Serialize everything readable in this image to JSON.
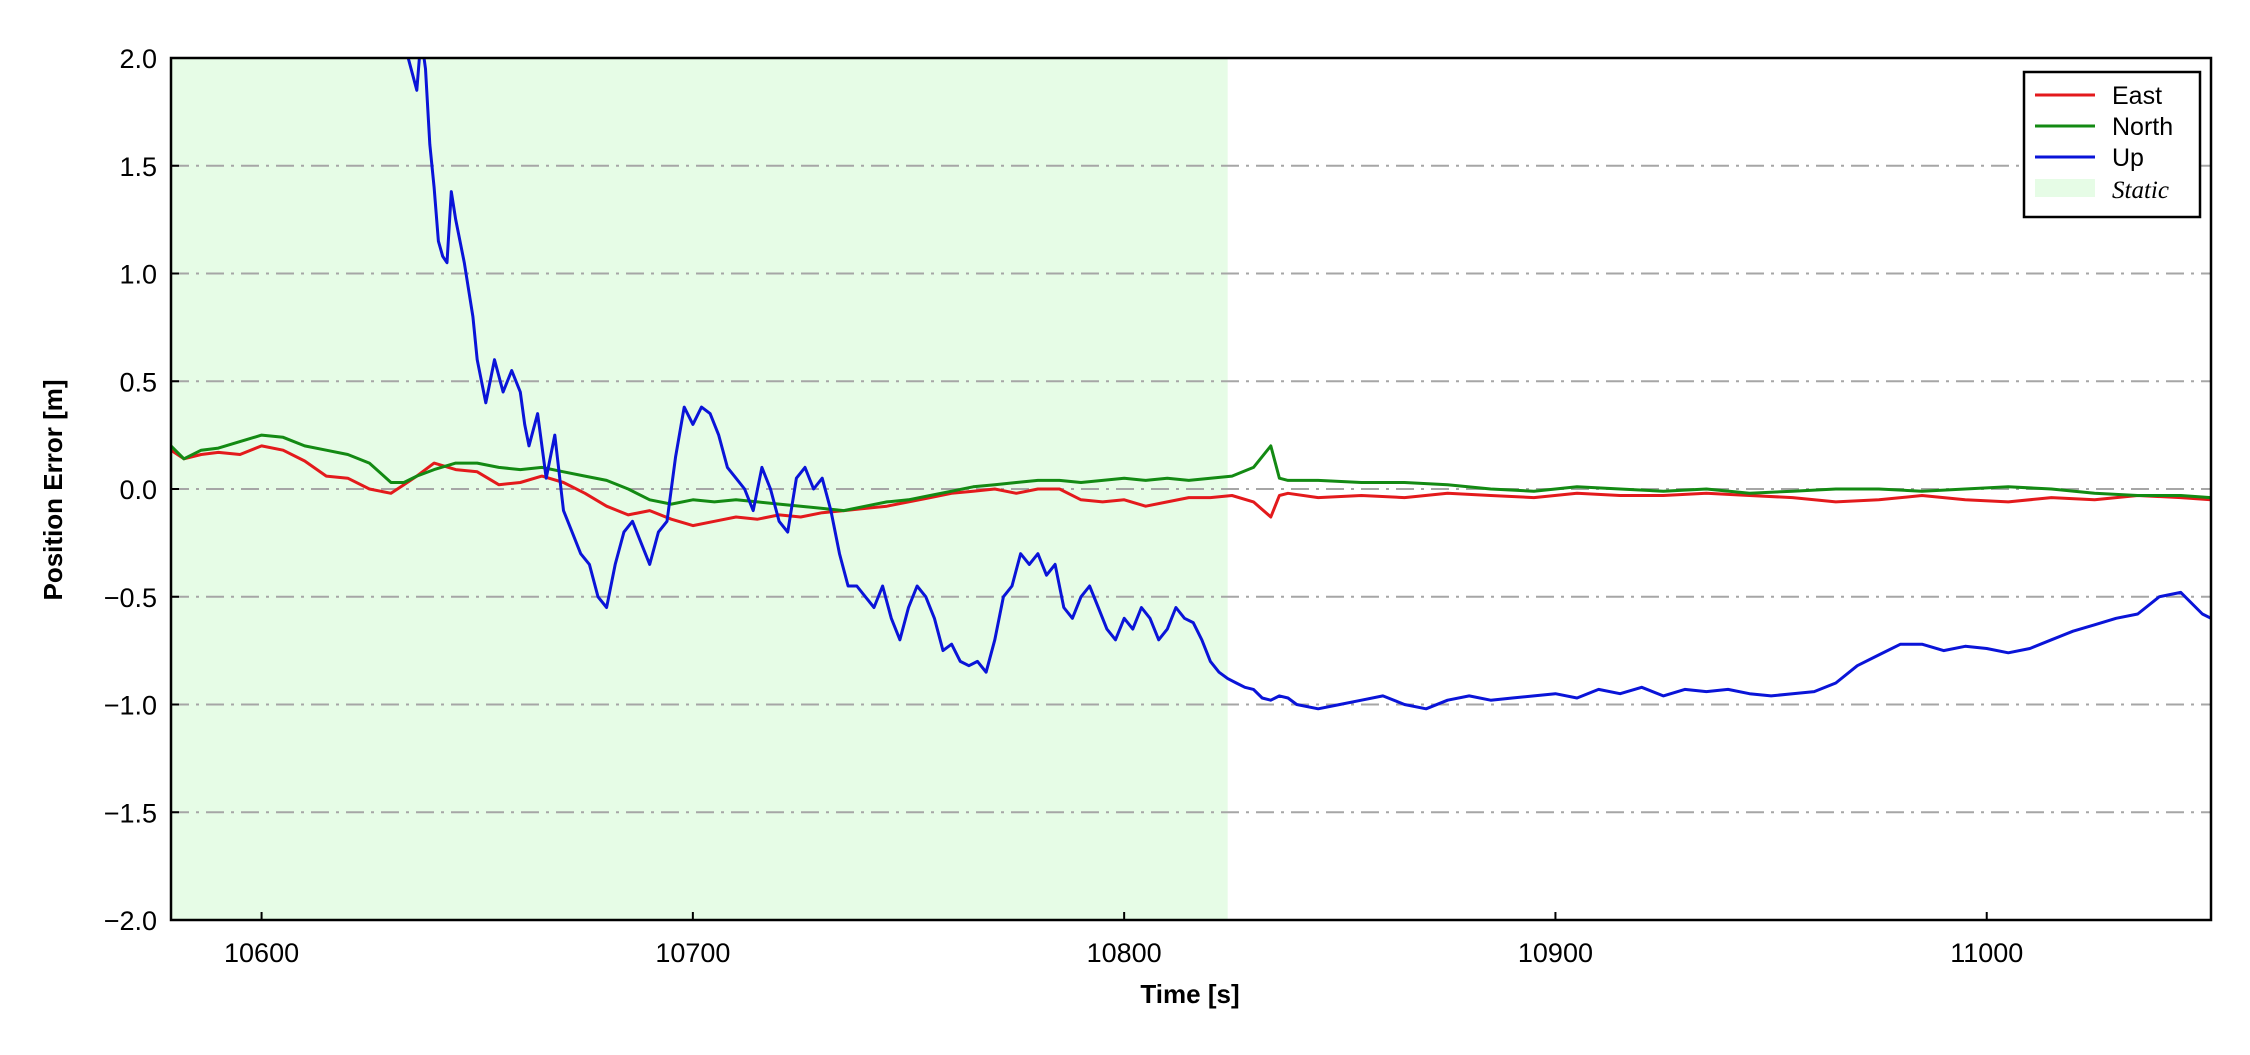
{
  "chart_data": {
    "type": "line",
    "xlabel": "Time [s]",
    "ylabel": "Position Error [m]",
    "xlim": [
      10579,
      11052
    ],
    "ylim": [
      -2.0,
      2.0
    ],
    "xticks": [
      10600,
      10700,
      10800,
      10900,
      11000
    ],
    "xtick_labels": [
      "10600",
      "10700",
      "10800",
      "10900",
      "11000"
    ],
    "yticks": [
      2.0,
      1.5,
      1.0,
      0.5,
      0.0,
      -0.5,
      -1.0,
      -1.5,
      -2.0
    ],
    "ytick_labels": [
      "2.0",
      "1.5",
      "1.0",
      "0.5",
      "0.0",
      "−0.5",
      "−1.0",
      "−1.5",
      "−2.0"
    ],
    "grid": "horizontal dash-dot",
    "legend_position": "top-right",
    "shaded_region": {
      "label": "Static",
      "x_range": [
        10579,
        10824
      ],
      "color": "#e6fce6"
    },
    "series": [
      {
        "name": "East",
        "color": "#e31a1c",
        "x": [
          10579,
          10582,
          10586,
          10590,
          10595,
          10600,
          10605,
          10610,
          10615,
          10620,
          10625,
          10630,
          10633,
          10636,
          10640,
          10645,
          10650,
          10655,
          10660,
          10665,
          10670,
          10675,
          10680,
          10685,
          10690,
          10695,
          10700,
          10705,
          10710,
          10715,
          10720,
          10725,
          10730,
          10735,
          10740,
          10745,
          10750,
          10755,
          10760,
          10765,
          10770,
          10775,
          10780,
          10785,
          10790,
          10795,
          10800,
          10805,
          10810,
          10815,
          10820,
          10825,
          10830,
          10834,
          10836,
          10838,
          10845,
          10855,
          10865,
          10875,
          10885,
          10895,
          10905,
          10915,
          10925,
          10935,
          10945,
          10955,
          10965,
          10975,
          10985,
          10995,
          11005,
          11015,
          11025,
          11035,
          11045,
          11052
        ],
        "y": [
          0.18,
          0.14,
          0.16,
          0.17,
          0.16,
          0.2,
          0.18,
          0.13,
          0.06,
          0.05,
          0.0,
          -0.02,
          0.02,
          0.06,
          0.12,
          0.09,
          0.08,
          0.02,
          0.03,
          0.06,
          0.03,
          -0.02,
          -0.08,
          -0.12,
          -0.1,
          -0.14,
          -0.17,
          -0.15,
          -0.13,
          -0.14,
          -0.12,
          -0.13,
          -0.11,
          -0.1,
          -0.09,
          -0.08,
          -0.06,
          -0.04,
          -0.02,
          -0.01,
          0.0,
          -0.02,
          0.0,
          0.0,
          -0.05,
          -0.06,
          -0.05,
          -0.08,
          -0.06,
          -0.04,
          -0.04,
          -0.03,
          -0.06,
          -0.13,
          -0.03,
          -0.02,
          -0.04,
          -0.03,
          -0.04,
          -0.02,
          -0.03,
          -0.04,
          -0.02,
          -0.03,
          -0.03,
          -0.02,
          -0.03,
          -0.04,
          -0.06,
          -0.05,
          -0.03,
          -0.05,
          -0.06,
          -0.04,
          -0.05,
          -0.03,
          -0.04,
          -0.05
        ]
      },
      {
        "name": "North",
        "color": "#138a13",
        "x": [
          10579,
          10582,
          10586,
          10590,
          10595,
          10600,
          10605,
          10610,
          10615,
          10620,
          10625,
          10630,
          10633,
          10636,
          10640,
          10645,
          10650,
          10655,
          10660,
          10665,
          10670,
          10675,
          10680,
          10685,
          10690,
          10695,
          10700,
          10705,
          10710,
          10715,
          10720,
          10725,
          10730,
          10735,
          10740,
          10745,
          10750,
          10755,
          10760,
          10765,
          10770,
          10775,
          10780,
          10785,
          10790,
          10795,
          10800,
          10805,
          10810,
          10815,
          10820,
          10825,
          10830,
          10834,
          10836,
          10838,
          10845,
          10855,
          10865,
          10875,
          10885,
          10895,
          10905,
          10915,
          10925,
          10935,
          10945,
          10955,
          10965,
          10975,
          10985,
          10995,
          11005,
          11015,
          11025,
          11035,
          11045,
          11052
        ],
        "y": [
          0.2,
          0.14,
          0.18,
          0.19,
          0.22,
          0.25,
          0.24,
          0.2,
          0.18,
          0.16,
          0.12,
          0.03,
          0.03,
          0.06,
          0.09,
          0.12,
          0.12,
          0.1,
          0.09,
          0.1,
          0.08,
          0.06,
          0.04,
          0.0,
          -0.05,
          -0.07,
          -0.05,
          -0.06,
          -0.05,
          -0.06,
          -0.07,
          -0.08,
          -0.09,
          -0.1,
          -0.08,
          -0.06,
          -0.05,
          -0.03,
          -0.01,
          0.01,
          0.02,
          0.03,
          0.04,
          0.04,
          0.03,
          0.04,
          0.05,
          0.04,
          0.05,
          0.04,
          0.05,
          0.06,
          0.1,
          0.2,
          0.05,
          0.04,
          0.04,
          0.03,
          0.03,
          0.02,
          0.0,
          -0.01,
          0.01,
          0.0,
          -0.01,
          0.0,
          -0.02,
          -0.01,
          0.0,
          0.0,
          -0.01,
          0.0,
          0.01,
          0.0,
          -0.02,
          -0.03,
          -0.03,
          -0.04
        ]
      },
      {
        "name": "Up",
        "color": "#0a14d8",
        "x": [
          10634,
          10636,
          10637,
          10638,
          10639,
          10640,
          10641,
          10642,
          10643,
          10644,
          10645,
          10647,
          10649,
          10650,
          10652,
          10654,
          10656,
          10658,
          10660,
          10661,
          10662,
          10664,
          10666,
          10668,
          10670,
          10672,
          10674,
          10676,
          10678,
          10680,
          10682,
          10684,
          10686,
          10688,
          10690,
          10692,
          10694,
          10696,
          10698,
          10700,
          10702,
          10704,
          10706,
          10708,
          10710,
          10712,
          10714,
          10716,
          10718,
          10720,
          10722,
          10724,
          10726,
          10728,
          10730,
          10732,
          10734,
          10736,
          10738,
          10740,
          10742,
          10744,
          10746,
          10748,
          10750,
          10752,
          10754,
          10756,
          10758,
          10760,
          10762,
          10764,
          10766,
          10768,
          10770,
          10772,
          10774,
          10776,
          10778,
          10780,
          10782,
          10784,
          10786,
          10788,
          10790,
          10792,
          10794,
          10796,
          10798,
          10800,
          10802,
          10804,
          10806,
          10808,
          10810,
          10812,
          10814,
          10816,
          10818,
          10820,
          10822,
          10824,
          10826,
          10828,
          10830,
          10832,
          10834,
          10836,
          10838,
          10840,
          10845,
          10850,
          10855,
          10860,
          10865,
          10870,
          10875,
          10880,
          10885,
          10890,
          10895,
          10900,
          10905,
          10910,
          10915,
          10920,
          10925,
          10930,
          10935,
          10940,
          10945,
          10950,
          10955,
          10960,
          10965,
          10970,
          10975,
          10980,
          10985,
          10990,
          10995,
          11000,
          11005,
          11010,
          11015,
          11020,
          11025,
          11030,
          11035,
          11040,
          11045,
          11050,
          11052
        ],
        "y": [
          2.0,
          1.85,
          2.1,
          1.95,
          1.6,
          1.4,
          1.15,
          1.08,
          1.05,
          1.38,
          1.25,
          1.05,
          0.8,
          0.6,
          0.4,
          0.6,
          0.45,
          0.55,
          0.45,
          0.3,
          0.2,
          0.35,
          0.05,
          0.25,
          -0.1,
          -0.2,
          -0.3,
          -0.35,
          -0.5,
          -0.55,
          -0.35,
          -0.2,
          -0.15,
          -0.25,
          -0.35,
          -0.2,
          -0.15,
          0.15,
          0.38,
          0.3,
          0.38,
          0.35,
          0.25,
          0.1,
          0.05,
          0.0,
          -0.1,
          0.1,
          0.0,
          -0.15,
          -0.2,
          0.05,
          0.1,
          0.0,
          0.05,
          -0.1,
          -0.3,
          -0.45,
          -0.45,
          -0.5,
          -0.55,
          -0.45,
          -0.6,
          -0.7,
          -0.55,
          -0.45,
          -0.5,
          -0.6,
          -0.75,
          -0.72,
          -0.8,
          -0.82,
          -0.8,
          -0.85,
          -0.7,
          -0.5,
          -0.45,
          -0.3,
          -0.35,
          -0.3,
          -0.4,
          -0.35,
          -0.55,
          -0.6,
          -0.5,
          -0.45,
          -0.55,
          -0.65,
          -0.7,
          -0.6,
          -0.65,
          -0.55,
          -0.6,
          -0.7,
          -0.65,
          -0.55,
          -0.6,
          -0.62,
          -0.7,
          -0.8,
          -0.85,
          -0.88,
          -0.9,
          -0.92,
          -0.93,
          -0.97,
          -0.98,
          -0.96,
          -0.97,
          -1.0,
          -1.02,
          -1.0,
          -0.98,
          -0.96,
          -1.0,
          -1.02,
          -0.98,
          -0.96,
          -0.98,
          -0.97,
          -0.96,
          -0.95,
          -0.97,
          -0.93,
          -0.95,
          -0.92,
          -0.96,
          -0.93,
          -0.94,
          -0.93,
          -0.95,
          -0.96,
          -0.95,
          -0.94,
          -0.9,
          -0.82,
          -0.77,
          -0.72,
          -0.72,
          -0.75,
          -0.73,
          -0.74,
          -0.76,
          -0.74,
          -0.7,
          -0.66,
          -0.63,
          -0.6,
          -0.58,
          -0.5,
          -0.48,
          -0.58,
          -0.6
        ]
      }
    ]
  }
}
